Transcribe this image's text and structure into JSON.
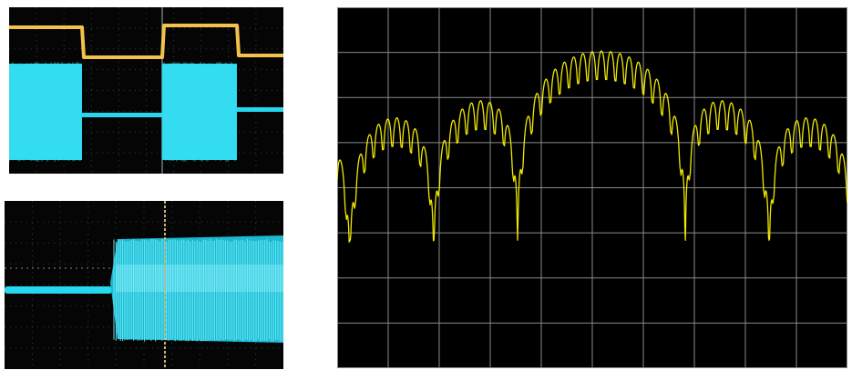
{
  "colors": {
    "background": "#ffffff",
    "scope_screen": "#050506",
    "scope_grid": "#3c4a52",
    "scope_cyan": "#27d7ee",
    "scope_yellow": "#f4c24a",
    "scope_cursor": "#c9b27a",
    "spectrum_screen": "#000000",
    "spectrum_grid": "#8a8a8a",
    "spectrum_trace": "#f0e800"
  },
  "panels": {
    "scope_top": {
      "description_icon": "oscilloscope-screen",
      "traces": [
        "yellow-gate-signal",
        "cyan-burst-signal"
      ]
    },
    "scope_bottom": {
      "description_icon": "oscilloscope-screen",
      "traces": [
        "cyan-burst-onset"
      ]
    },
    "spectrum": {
      "description_icon": "spectrum-analyzer-screen",
      "grid_divisions": {
        "x": 10,
        "y": 8
      },
      "traces": [
        "yellow-sinc-comb-spectrum"
      ]
    }
  }
}
